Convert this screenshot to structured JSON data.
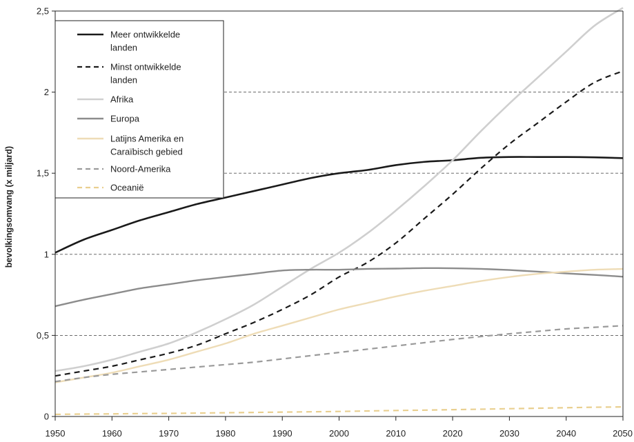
{
  "chart_data": {
    "type": "line",
    "title": "",
    "xlabel": "",
    "ylabel": "bevolkingsomvang (x miljard)",
    "xlim": [
      1950,
      2050
    ],
    "ylim": [
      0,
      2.5
    ],
    "x_ticks": [
      1950,
      1960,
      1970,
      1980,
      1990,
      2000,
      2010,
      2020,
      2030,
      2040,
      2050
    ],
    "y_ticks": [
      {
        "value": 0,
        "label": "0"
      },
      {
        "value": 0.5,
        "label": "0,5"
      },
      {
        "value": 1,
        "label": "1"
      },
      {
        "value": 1.5,
        "label": "1,5"
      },
      {
        "value": 2,
        "label": "2"
      },
      {
        "value": 2.5,
        "label": "2,5"
      }
    ],
    "grid": "horizontal dashed at y ticks",
    "legend_position": "top-left",
    "x": [
      1950,
      1955,
      1960,
      1965,
      1970,
      1975,
      1980,
      1985,
      1990,
      1995,
      2000,
      2005,
      2010,
      2015,
      2020,
      2025,
      2030,
      2035,
      2040,
      2045,
      2050
    ],
    "series": [
      {
        "name": "Meer ontwikkelde landen",
        "color": "#1a1a1a",
        "dashed": false,
        "width": 2.6,
        "values": [
          1.01,
          1.09,
          1.15,
          1.21,
          1.26,
          1.31,
          1.35,
          1.39,
          1.43,
          1.47,
          1.5,
          1.52,
          1.55,
          1.57,
          1.58,
          1.595,
          1.6,
          1.6,
          1.6,
          1.598,
          1.593
        ]
      },
      {
        "name": "Minst ontwikkelde landen",
        "color": "#1a1a1a",
        "dashed": true,
        "width": 2.2,
        "values": [
          0.25,
          0.28,
          0.31,
          0.35,
          0.39,
          0.44,
          0.51,
          0.58,
          0.66,
          0.75,
          0.86,
          0.95,
          1.07,
          1.22,
          1.37,
          1.53,
          1.68,
          1.81,
          1.94,
          2.06,
          2.13
        ]
      },
      {
        "name": "Afrika",
        "color": "#cfcfcf",
        "dashed": false,
        "width": 2.6,
        "values": [
          0.28,
          0.31,
          0.35,
          0.4,
          0.45,
          0.52,
          0.6,
          0.69,
          0.8,
          0.91,
          1.01,
          1.13,
          1.27,
          1.42,
          1.58,
          1.76,
          1.93,
          2.09,
          2.25,
          2.41,
          2.52
        ]
      },
      {
        "name": "Europa",
        "color": "#8c8c8c",
        "dashed": false,
        "width": 2.4,
        "values": [
          0.68,
          0.72,
          0.755,
          0.79,
          0.815,
          0.84,
          0.86,
          0.88,
          0.9,
          0.905,
          0.905,
          0.91,
          0.912,
          0.915,
          0.914,
          0.91,
          0.903,
          0.893,
          0.882,
          0.873,
          0.862
        ]
      },
      {
        "name": "Latijns Amerika en Caraïbisch gebied",
        "color": "#eedcb6",
        "dashed": false,
        "width": 2.4,
        "values": [
          0.21,
          0.24,
          0.27,
          0.31,
          0.35,
          0.4,
          0.45,
          0.51,
          0.56,
          0.61,
          0.66,
          0.7,
          0.74,
          0.775,
          0.805,
          0.835,
          0.86,
          0.88,
          0.893,
          0.905,
          0.91
        ]
      },
      {
        "name": "Noord-Amerika",
        "color": "#9a9a9a",
        "dashed": true,
        "width": 2.2,
        "values": [
          0.215,
          0.24,
          0.26,
          0.275,
          0.29,
          0.305,
          0.32,
          0.335,
          0.355,
          0.375,
          0.395,
          0.415,
          0.435,
          0.455,
          0.475,
          0.493,
          0.51,
          0.525,
          0.54,
          0.55,
          0.56
        ]
      },
      {
        "name": "Oceanië",
        "color": "#e9cf8f",
        "dashed": true,
        "width": 2.2,
        "values": [
          0.013,
          0.015,
          0.016,
          0.018,
          0.019,
          0.021,
          0.023,
          0.025,
          0.027,
          0.029,
          0.031,
          0.034,
          0.037,
          0.039,
          0.042,
          0.045,
          0.048,
          0.051,
          0.054,
          0.057,
          0.059
        ]
      }
    ],
    "legend_lines": [
      [
        "Meer ontwikkelde",
        "landen"
      ],
      [
        "Minst ontwikkelde",
        "landen"
      ],
      [
        "Afrika"
      ],
      [
        "Europa"
      ],
      [
        "Latijns Amerika en",
        "Caraïbisch gebied"
      ],
      [
        "Noord-Amerika"
      ],
      [
        "Oceanië"
      ]
    ]
  }
}
